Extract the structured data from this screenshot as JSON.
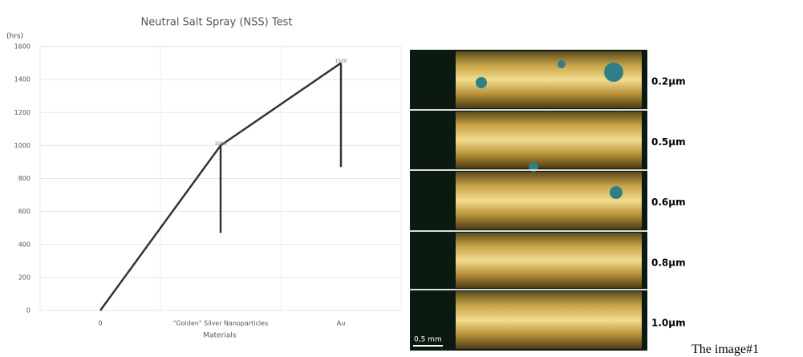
{
  "chart_data": {
    "type": "line",
    "title": "Neutral Salt Spray (NSS) Test",
    "y_label": "(hrs)",
    "x_label": "Materials",
    "categories": [
      "0",
      "\"Golden\" Silver Nanoparticles",
      "Au"
    ],
    "series": [
      {
        "color": "#333333",
        "values": [
          0,
          1000,
          1500
        ],
        "value_labels": [
          null,
          "1000",
          "1500"
        ],
        "error_minus": [
          null,
          530,
          630
        ]
      }
    ],
    "ylim": [
      0,
      1600
    ],
    "yticks": [
      0,
      200,
      400,
      600,
      800,
      1000,
      1200,
      1400,
      1600
    ],
    "grid": true
  },
  "photo": {
    "thickness_labels": [
      "0.2µm",
      "0.5µm",
      "0.6µm",
      "0.8µm",
      "1.0µm"
    ],
    "scale_bar": "0,5 mm"
  },
  "caption": "The image#1"
}
